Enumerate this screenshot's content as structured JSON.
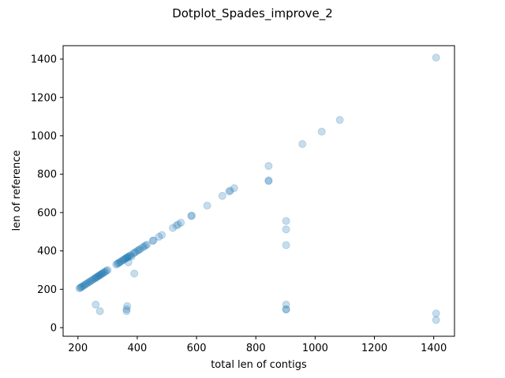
{
  "chart_data": {
    "type": "scatter",
    "title": "Dotplot_Spades_improve_2",
    "xlabel": "total len of contigs",
    "ylabel": "len of reference",
    "xlim": [
      150,
      1470
    ],
    "ylim": [
      -45,
      1470
    ],
    "xticks": [
      200,
      400,
      600,
      800,
      1000,
      1200,
      1400
    ],
    "yticks": [
      0,
      200,
      400,
      600,
      800,
      1000,
      1200,
      1400
    ],
    "xtick_labels": [
      "200",
      "400",
      "600",
      "800",
      "1000",
      "1200",
      "1400"
    ],
    "ytick_labels": [
      "0",
      "200",
      "400",
      "600",
      "800",
      "1000",
      "1200",
      "1400"
    ],
    "grid": false,
    "legend": false,
    "marker_color": "#1f77b4",
    "marker_alpha": 0.25,
    "series": [
      {
        "x": [
          1408,
          1083,
          1022,
          957,
          843,
          843,
          843,
          727,
          714,
          710,
          687,
          636,
          584,
          582,
          547,
          538,
          532,
          520,
          483,
          473,
          455,
          452,
          433,
          428,
          423,
          418,
          410,
          406,
          402,
          396,
          391,
          387,
          378,
          374,
          370,
          367,
          365,
          362,
          358,
          355,
          352,
          347,
          343,
          340,
          336,
          333,
          329,
          300,
          296,
          292,
          288,
          285,
          282,
          279,
          276,
          273,
          270,
          267,
          264,
          261,
          258,
          255,
          250,
          246,
          242,
          238,
          234,
          230,
          226,
          222,
          218,
          214,
          211,
          208,
          205,
          902,
          902,
          902,
          902,
          902,
          902,
          1408,
          1408,
          390,
          380,
          370,
          366,
          364,
          364,
          260,
          274
        ],
        "y": [
          1408,
          1083,
          1022,
          957,
          843,
          768,
          764,
          727,
          714,
          710,
          687,
          636,
          584,
          582,
          547,
          538,
          532,
          520,
          483,
          473,
          455,
          452,
          433,
          428,
          423,
          418,
          410,
          406,
          402,
          396,
          391,
          387,
          378,
          374,
          370,
          367,
          365,
          362,
          358,
          355,
          352,
          347,
          343,
          340,
          336,
          333,
          329,
          300,
          296,
          292,
          288,
          285,
          282,
          279,
          276,
          273,
          270,
          267,
          264,
          261,
          258,
          255,
          250,
          246,
          242,
          238,
          234,
          230,
          226,
          222,
          218,
          214,
          211,
          208,
          205,
          556,
          512,
          430,
          120,
          96,
          94,
          74,
          40,
          282,
          370,
          340,
          112,
          96,
          86,
          120,
          86
        ]
      }
    ]
  }
}
